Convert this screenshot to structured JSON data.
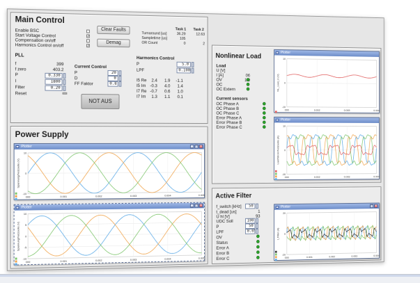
{
  "main_control": {
    "title": "Main Control",
    "labels": [
      "Enable BSC",
      "Start Voltage Control",
      "Compensation on/off",
      "Harmonics Control on/off"
    ],
    "check_marks": [
      "",
      "✓",
      "",
      "✓"
    ],
    "clear_faults_label": "Clear Faults",
    "demag_label": "Demag",
    "task_header_1": "Task 1",
    "task_header_2": "Task 2",
    "task_rows": [
      {
        "label": "Turnaround [us]",
        "v1": "36.29",
        "v2": "12.63"
      },
      {
        "label": "Sampletime [us]",
        "v1": "105",
        "v2": ""
      },
      {
        "label": "OR Count",
        "v1": "0",
        "v2": "2"
      }
    ],
    "pll": {
      "title": "PLL",
      "rows": [
        {
          "label": "f",
          "value": "399"
        },
        {
          "label": "f zero",
          "value": "403.2"
        }
      ],
      "inputs": [
        {
          "label": "P",
          "value": "0.330"
        },
        {
          "label": "I",
          "value": "1800"
        },
        {
          "label": "Filter",
          "value": "0.20"
        }
      ],
      "reset_label": "Reset"
    },
    "current_control": {
      "title": "Current Control",
      "rows": [
        {
          "label": "P",
          "value": "20"
        },
        {
          "label": "D",
          "value": "0"
        },
        {
          "label": "FF Faktor",
          "value": "0.8"
        }
      ]
    },
    "not_aus_label": "NOT AUS",
    "harmonics": {
      "title": "Harmonics Control",
      "inputs": [
        {
          "label": "P",
          "value": "5.0"
        },
        {
          "label": "LPF",
          "value": "0.1000"
        }
      ],
      "rows": [
        {
          "label": "I5 Re",
          "vals": [
            "2.4",
            "1.9",
            "-1.1"
          ]
        },
        {
          "label": "I5 Im",
          "vals": [
            "-0.3",
            "4.0",
            "1.4"
          ]
        },
        {
          "label": "I7 Re",
          "vals": [
            "-0.7",
            "0.6",
            "1.0"
          ]
        },
        {
          "label": "I7 Im",
          "vals": [
            "1.3",
            "1.1",
            "0.1"
          ]
        }
      ]
    }
  },
  "power_supply": {
    "title": "Power Supply"
  },
  "nonlinear_load": {
    "title": "Nonlinear Load",
    "load_title": "Load",
    "load_rows": [
      {
        "label": "U [V]",
        "value": ""
      },
      {
        "label": "I [A]",
        "value": "06"
      },
      {
        "label": "OV",
        "value": "1.9"
      },
      {
        "label": "OC",
        "value": ""
      },
      {
        "label": "OC Extern",
        "value": ""
      }
    ],
    "sensors_title": "Current sensors",
    "sensor_rows": [
      "OC Phase A",
      "OC Phase B",
      "OC Phase C",
      "Error Phase A",
      "Error Phase B",
      "Error Phase C"
    ]
  },
  "active_filter": {
    "title": "Active Filter",
    "rows": [
      {
        "label": "f_switch [kHz]",
        "value": "50",
        "kind": "input"
      },
      {
        "label": "t_dead [us]",
        "value": "1",
        "kind": "text"
      },
      {
        "label": "U hl [V]",
        "value": "93",
        "kind": "text"
      },
      {
        "label": "UDC Soll",
        "value": "100",
        "kind": "input"
      },
      {
        "label": "P",
        "value": "50",
        "kind": "input"
      },
      {
        "label": "LPF",
        "value": "0.050",
        "kind": "input"
      },
      {
        "label": "OV",
        "value": "",
        "kind": "led"
      },
      {
        "label": "Status",
        "value": "",
        "kind": "led"
      },
      {
        "label": "Error A",
        "value": "",
        "kind": "led"
      },
      {
        "label": "Error B",
        "value": "",
        "kind": "led"
      },
      {
        "label": "Error C",
        "value": "",
        "kind": "led"
      }
    ]
  },
  "window_title": "Plotter",
  "chart_data": [
    {
      "id": "ps1",
      "type": "line",
      "x": [
        0,
        0.005
      ],
      "xticks": [
        "000",
        "0.001",
        "0.002",
        "0.003",
        "0.004",
        "0.005"
      ],
      "ylim": [
        -10,
        10
      ],
      "yticks": [
        "10",
        "0",
        "-10"
      ],
      "ylabel": "Spannung/Netzseite (V)",
      "series": [
        {
          "color": "#5aa9e6",
          "amp": 10,
          "cycles": 2,
          "phase": 0
        },
        {
          "color": "#f0a34a",
          "amp": 10,
          "cycles": 2,
          "phase": 2.094
        },
        {
          "color": "#7dc56b",
          "amp": 10,
          "cycles": 2,
          "phase": 4.189
        }
      ]
    },
    {
      "id": "ps2",
      "type": "line",
      "x": [
        0,
        0.005
      ],
      "xticks": [
        "000",
        "0.001",
        "0.002",
        "0.003",
        "0.004",
        "0.005"
      ],
      "ylim": [
        -10,
        10
      ],
      "yticks": [
        "10",
        "5",
        "0",
        "-5",
        "-10"
      ],
      "ylabel": "Spannung/Netzseite (V)",
      "series": [
        {
          "color": "#5aa9e6",
          "amp": 9,
          "cycles": 2,
          "phase": 0.6
        },
        {
          "color": "#f0a34a",
          "amp": 9,
          "cycles": 2,
          "phase": 2.694
        },
        {
          "color": "#7dc56b",
          "amp": 9,
          "cycles": 2,
          "phase": 4.789
        }
      ]
    },
    {
      "id": "nl1",
      "type": "line",
      "x": [
        0,
        0.004
      ],
      "xticks": [
        "000",
        "0.002",
        "0.003",
        "0.004"
      ],
      "ylim": [
        -10,
        10
      ],
      "yticks": [
        "10",
        "0",
        "-10"
      ],
      "ylabel": "NL_Last_U (V)",
      "series": [
        {
          "color": "#e05a5a",
          "amp": 0.6,
          "cycles": 3,
          "phase": 0,
          "offset": 3
        }
      ]
    },
    {
      "id": "nl2",
      "type": "line",
      "x": [
        0,
        0.004
      ],
      "xticks": [
        "000",
        "0.002",
        "0.003",
        "0.004"
      ],
      "ylim": [
        -10,
        10
      ],
      "yticks": [
        "10",
        "0",
        "-10"
      ],
      "ylabel": "Last/Strom/Netzseite (A)",
      "series": [
        {
          "color": "#5aa9e6",
          "amp": 7,
          "cycles": 4,
          "phase": 0,
          "distort": 0.25
        },
        {
          "color": "#f0a34a",
          "amp": 7,
          "cycles": 4,
          "phase": 2.094,
          "distort": 0.25
        },
        {
          "color": "#7dc56b",
          "amp": 7,
          "cycles": 4,
          "phase": 4.189,
          "distort": 0.25
        },
        {
          "color": "#e05a5a",
          "amp": 2,
          "cycles": 4,
          "phase": 1.0,
          "distort": 0.4
        }
      ]
    },
    {
      "id": "af1",
      "type": "line",
      "x": [
        0,
        0.004
      ],
      "xticks": [
        "000",
        "0.001",
        "0.002",
        "0.003",
        "0.004"
      ],
      "ylim": [
        -20,
        20
      ],
      "yticks": [
        "20",
        "0",
        "-20"
      ],
      "ylabel": "I_Filter (A)",
      "series": [
        {
          "color": "#5aa9e6",
          "amp": 6,
          "cycles": 6,
          "phase": 0,
          "distort": 0.5
        },
        {
          "color": "#f0a34a",
          "amp": 6,
          "cycles": 6,
          "phase": 2.094,
          "distort": 0.5
        },
        {
          "color": "#7dc56b",
          "amp": 6,
          "cycles": 6,
          "phase": 4.189,
          "distort": 0.5
        },
        {
          "color": "#333333",
          "amp": 3,
          "cycles": 6,
          "phase": 1.2,
          "distort": 0.7
        }
      ]
    }
  ]
}
